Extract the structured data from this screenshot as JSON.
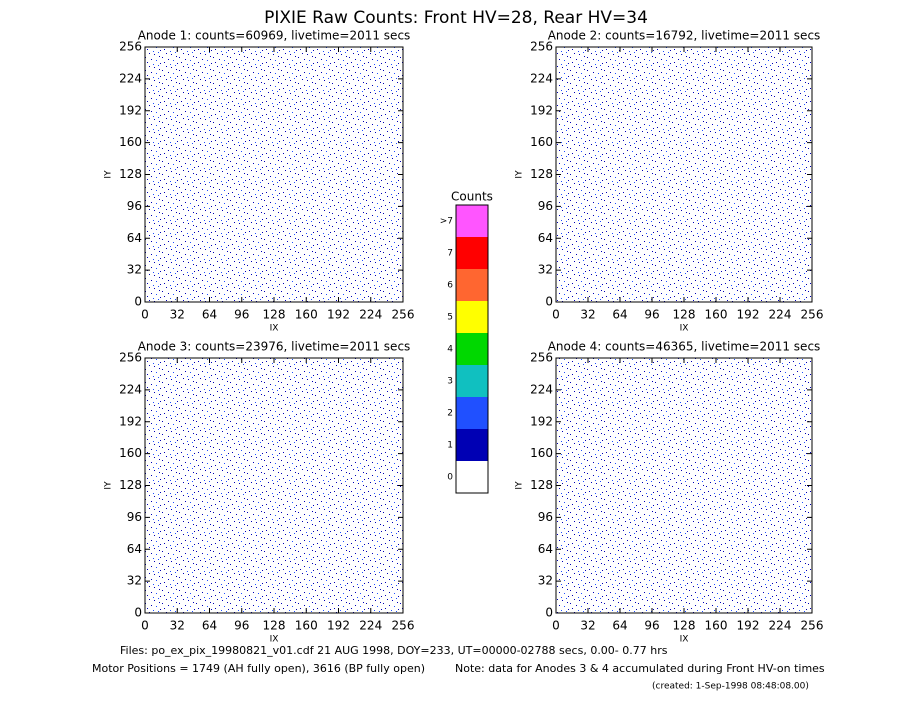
{
  "title": "PIXIE Raw Counts:  Front HV=28, Rear HV=34",
  "chart_data": [
    {
      "type": "heatmap",
      "title": "Anode 1: counts=60969, livetime=2011 secs",
      "xlabel": "IX",
      "ylabel": "IY",
      "xlim": [
        0,
        256
      ],
      "ylim": [
        0,
        256
      ],
      "xticks": [
        0,
        32,
        64,
        96,
        128,
        160,
        192,
        224,
        256
      ],
      "yticks": [
        0,
        32,
        64,
        96,
        128,
        160,
        192,
        224,
        256
      ]
    },
    {
      "type": "heatmap",
      "title": "Anode 2: counts=16792, livetime=2011 secs",
      "xlabel": "IX",
      "ylabel": "IY",
      "xlim": [
        0,
        256
      ],
      "ylim": [
        0,
        256
      ],
      "xticks": [
        0,
        32,
        64,
        96,
        128,
        160,
        192,
        224,
        256
      ],
      "yticks": [
        0,
        32,
        64,
        96,
        128,
        160,
        192,
        224,
        256
      ]
    },
    {
      "type": "heatmap",
      "title": "Anode 3: counts=23976, livetime=2011 secs",
      "xlabel": "IX",
      "ylabel": "IY",
      "xlim": [
        0,
        256
      ],
      "ylim": [
        0,
        256
      ],
      "xticks": [
        0,
        32,
        64,
        96,
        128,
        160,
        192,
        224,
        256
      ],
      "yticks": [
        0,
        32,
        64,
        96,
        128,
        160,
        192,
        224,
        256
      ]
    },
    {
      "type": "heatmap",
      "title": "Anode 4: counts=46365, livetime=2011 secs",
      "xlabel": "IX",
      "ylabel": "IY",
      "xlim": [
        0,
        256
      ],
      "ylim": [
        0,
        256
      ],
      "xticks": [
        0,
        32,
        64,
        96,
        128,
        160,
        192,
        224,
        256
      ],
      "yticks": [
        0,
        32,
        64,
        96,
        128,
        160,
        192,
        224,
        256
      ]
    }
  ],
  "colorbar": {
    "title": "Counts",
    "categories": [
      "0",
      "1",
      "2",
      "3",
      "4",
      "5",
      "6",
      "7",
      ">7"
    ],
    "colors": [
      "#ffffff",
      "#0000b4",
      "#2050ff",
      "#10c0c0",
      "#00d800",
      "#ffff00",
      "#ff6630",
      "#ff0000",
      "#ff55ff"
    ]
  },
  "footer": {
    "files": "Files: po_ex_pix_19980821_v01.cdf   21 AUG 1998, DOY=233, UT=00000-02788 secs,  0.00- 0.77 hrs",
    "motor": "Motor Positions = 1749 (AH fully open), 3616 (BP fully open)",
    "note": "Note: data for Anodes 3 & 4 accumulated during Front HV-on times",
    "created": "(created:  1-Sep-1998 08:48:08.00)"
  }
}
